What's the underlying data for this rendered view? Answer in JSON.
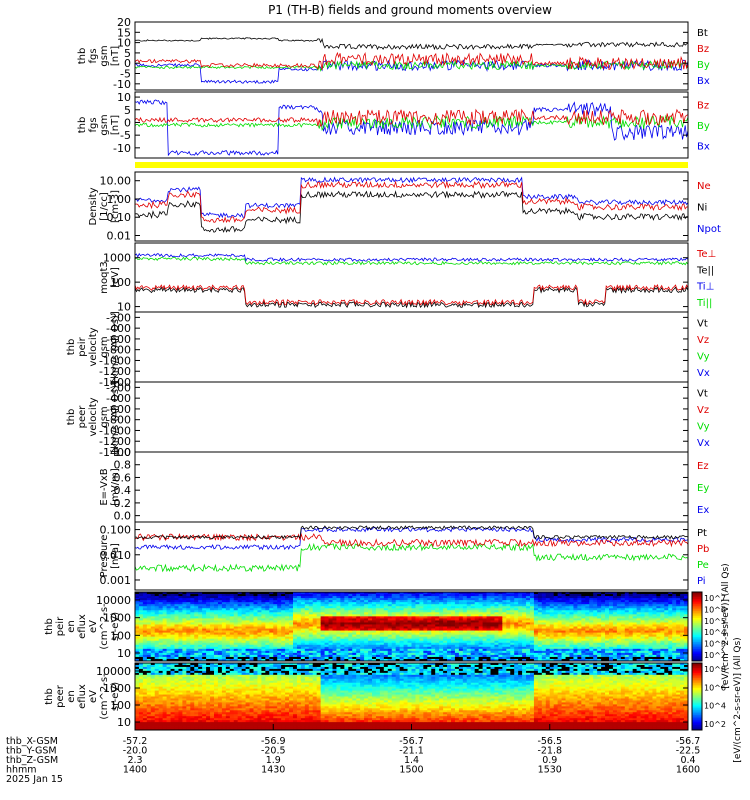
{
  "title": "P1 (TH-B) fields and ground moments overview",
  "colors": {
    "black": "#000000",
    "red": "#e00000",
    "green": "#00dd00",
    "blue": "#0000ee",
    "yellow": "#ffff00"
  },
  "chart_data": {
    "type": "line",
    "x_ticks": [
      "1400",
      "1430",
      "1500",
      "1530",
      "1600"
    ],
    "footer": {
      "rows": [
        {
          "label": "thb_X-GSM",
          "values": [
            "-57.2",
            "-56.9",
            "-56.7",
            "-56.5",
            "-56.7"
          ]
        },
        {
          "label": "thb_Y-GSM",
          "values": [
            "-20.0",
            "-20.5",
            "-21.1",
            "-21.8",
            "-22.5"
          ]
        },
        {
          "label": "thb_Z-GSM",
          "values": [
            "2.3",
            "1.9",
            "1.4",
            "0.9",
            "0.4"
          ]
        },
        {
          "label": "hhmm",
          "values": [
            "1400",
            "1430",
            "1500",
            "1530",
            "1600"
          ]
        }
      ],
      "date": "2025 Jan 15"
    },
    "panels": [
      {
        "id": "p1",
        "ylabel": [
          "thb",
          "fgs",
          "gsm",
          "[nT]"
        ],
        "ticks": [
          "20",
          "15",
          "10",
          "5",
          "0",
          "-5",
          "-10"
        ],
        "ylim": [
          -13,
          20
        ],
        "legend": [
          {
            "text": "Bt",
            "color": "#000000"
          },
          {
            "text": "Bz",
            "color": "#e00000"
          },
          {
            "text": "By",
            "color": "#00dd00"
          },
          {
            "text": "Bx",
            "color": "#0000ee"
          }
        ]
      },
      {
        "id": "p2",
        "ylabel": [
          "thb",
          "fgs",
          "gsm",
          "[nT]"
        ],
        "ticks": [
          "10",
          "5",
          "0",
          "-5",
          "-10"
        ],
        "ylim": [
          -14,
          12
        ],
        "legend": [
          {
            "text": "Bz",
            "color": "#e00000"
          },
          {
            "text": "By",
            "color": "#00dd00"
          },
          {
            "text": "Bx",
            "color": "#0000ee"
          }
        ]
      },
      {
        "id": "p3",
        "ylabel": [
          "Density",
          "[1/cc]",
          "[cm-3]"
        ],
        "ticks": [
          "10.00",
          "1.00",
          "0.10",
          "0.01"
        ],
        "ylim": [
          0.005,
          30
        ],
        "log": true,
        "legend": [
          {
            "text": "Ne",
            "color": "#e00000"
          },
          {
            "text": "Ni",
            "color": "#000000"
          },
          {
            "text": "Npot",
            "color": "#0000ee"
          }
        ]
      },
      {
        "id": "p4",
        "ylabel": [
          "moqt3",
          "[eV]"
        ],
        "ticks": [
          "1000",
          "100",
          "10"
        ],
        "ylim": [
          6,
          4000
        ],
        "log": true,
        "legend": [
          {
            "text": "Te⊥",
            "color": "#e00000"
          },
          {
            "text": "Te||",
            "color": "#000000"
          },
          {
            "text": "Ti⊥",
            "color": "#0000ee"
          },
          {
            "text": "Ti||",
            "color": "#00dd00"
          }
        ]
      },
      {
        "id": "p5",
        "ylabel": [
          "thb",
          "peir",
          "velocity",
          "gsm",
          "[km/s (All Qs)]"
        ],
        "ticks": [
          "-200",
          "-400",
          "-600",
          "-800",
          "-1000",
          "-1200",
          "-1400"
        ],
        "ylim": [
          -1400,
          -100
        ],
        "legend": [
          {
            "text": "Vt",
            "color": "#000000"
          },
          {
            "text": "Vz",
            "color": "#e00000"
          },
          {
            "text": "Vy",
            "color": "#00dd00"
          },
          {
            "text": "Vx",
            "color": "#0000ee"
          }
        ]
      },
      {
        "id": "p6",
        "ylabel": [
          "thb",
          "peer",
          "velocity",
          "gsm",
          "[km/s (All Qs)]"
        ],
        "ticks": [
          "-200",
          "-400",
          "-600",
          "-800",
          "-1000",
          "-1200",
          "-1400"
        ],
        "ylim": [
          -1400,
          -100
        ],
        "legend": [
          {
            "text": "Vt",
            "color": "#000000"
          },
          {
            "text": "Vz",
            "color": "#e00000"
          },
          {
            "text": "Vy",
            "color": "#00dd00"
          },
          {
            "text": "Vx",
            "color": "#0000ee"
          }
        ]
      },
      {
        "id": "p7",
        "ylabel": [
          "E=-VxB",
          "[mV/m]"
        ],
        "ticks": [
          "1.0",
          "0.8",
          "0.6",
          "0.4",
          "0.2",
          "0.0"
        ],
        "ylim": [
          -0.1,
          1.0
        ],
        "legend": [
          {
            "text": "Ez",
            "color": "#e00000"
          },
          {
            "text": "Ey",
            "color": "#00dd00"
          },
          {
            "text": "Ex",
            "color": "#0000ee"
          }
        ]
      },
      {
        "id": "p8",
        "ylabel": [
          "Pressure",
          "[nPa]"
        ],
        "ticks": [
          "0.100",
          "0.010",
          "0.001"
        ],
        "ylim": [
          0.0004,
          0.2
        ],
        "log": true,
        "legend": [
          {
            "text": "Pt",
            "color": "#000000"
          },
          {
            "text": "Pb",
            "color": "#e00000"
          },
          {
            "text": "Pe",
            "color": "#00dd00"
          },
          {
            "text": "Pi",
            "color": "#0000ee"
          }
        ]
      },
      {
        "id": "p9",
        "ylabel": [
          "thb",
          "peir",
          "en",
          "eflux",
          "eV",
          "(cm^2-s-",
          "sr-eV)"
        ],
        "ticks": [
          "10000",
          "1000",
          "100",
          "10"
        ],
        "type": "heatmap",
        "colorbar_ticks": [
          "10^7",
          "10^6",
          "10^5",
          "10^4",
          "10^3",
          "10^2"
        ]
      },
      {
        "id": "p10",
        "ylabel": [
          "thb",
          "peer",
          "en",
          "eflux",
          "eV",
          "(cm^2-s-",
          "sr-eV)"
        ],
        "ticks": [
          "10000",
          "1000",
          "100",
          "10"
        ],
        "type": "heatmap",
        "colorbar_ticks": [
          "10^8",
          "10^6",
          "10^4",
          "10^2"
        ]
      }
    ],
    "colorbar_label_1": "[eV/(cm^2-s-sr-eV)] (All Qs)",
    "colorbar_label_2": "[eV/(cm^2-s-sr-eV)] (All Qs)"
  }
}
